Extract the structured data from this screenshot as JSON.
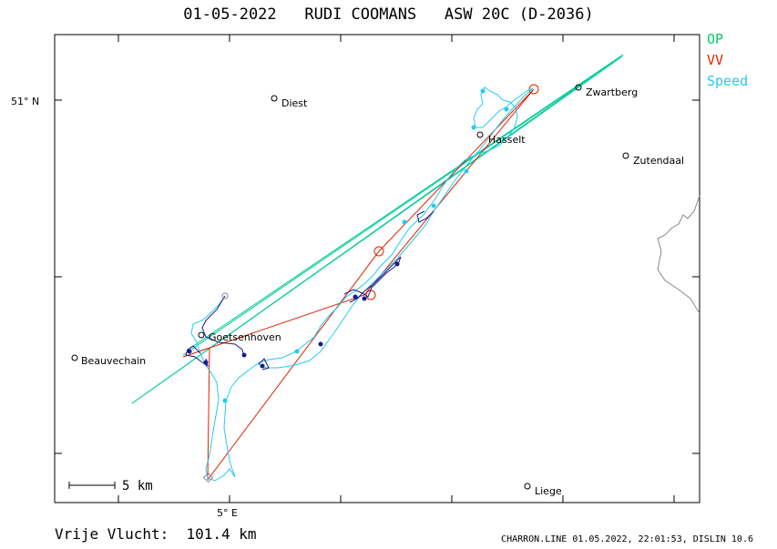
{
  "header": {
    "date": "01-05-2022",
    "pilot": "RUDI COOMANS",
    "glider": "ASW 20C (D-2036)"
  },
  "legend": [
    {
      "label": "OP",
      "color": "#00cc66"
    },
    {
      "label": "VV",
      "color": "#dd2200"
    },
    {
      "label": "Speed",
      "color": "#22ccee"
    }
  ],
  "axes": {
    "lat_label": "51° N",
    "lon_label": "5° E"
  },
  "scale": {
    "label": "5 km"
  },
  "places": [
    {
      "name": "Diest"
    },
    {
      "name": "Hasselt"
    },
    {
      "name": "Zwartberg"
    },
    {
      "name": "Zutendaal"
    },
    {
      "name": "Goetsenhoven"
    },
    {
      "name": "Beauvechain"
    },
    {
      "name": "Liege"
    }
  ],
  "footer": {
    "distance": "Vrije Vlucht:  101.4 km",
    "credit": "CHARRON.LINE 01.05.2022, 22:01:53, DISLIN 10.6"
  },
  "colors": {
    "track": "#22ccee",
    "track_dark": "#1a1a88",
    "op": "#00cc99",
    "vv": "#dd2200",
    "border": "#888888"
  }
}
